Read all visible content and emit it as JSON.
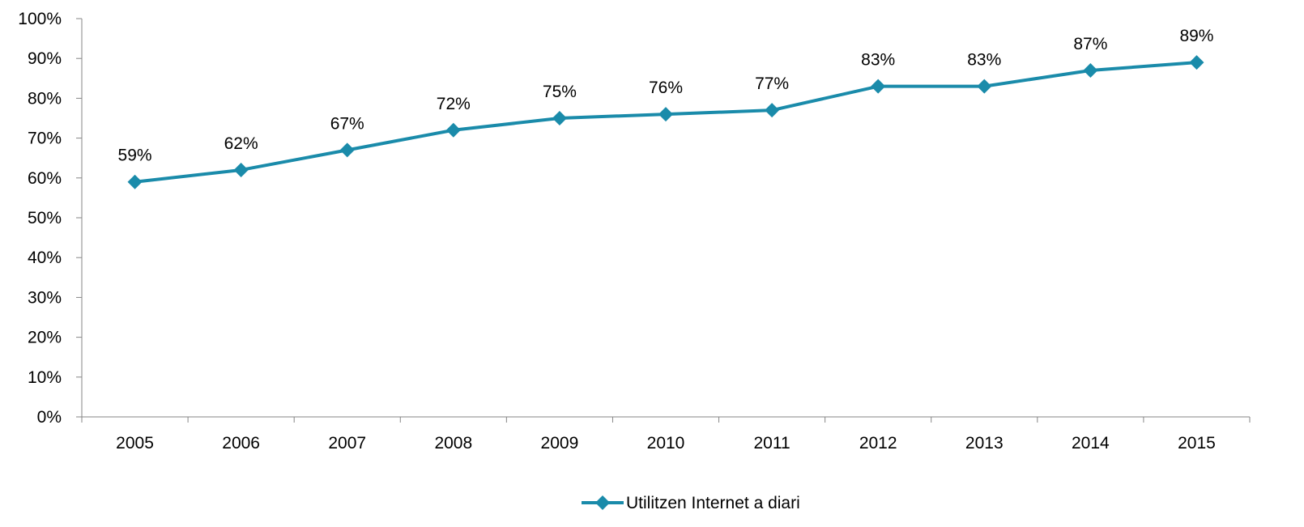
{
  "chart_data": {
    "type": "line",
    "title": "",
    "xlabel": "",
    "ylabel": "",
    "categories": [
      "2005",
      "2006",
      "2007",
      "2008",
      "2009",
      "2010",
      "2011",
      "2012",
      "2013",
      "2014",
      "2015"
    ],
    "series": [
      {
        "name": "Utilitzen Internet a diari",
        "values": [
          59,
          62,
          67,
          72,
          75,
          76,
          77,
          83,
          83,
          87,
          89
        ],
        "labels": [
          "59%",
          "62%",
          "67%",
          "72%",
          "75%",
          "76%",
          "77%",
          "83%",
          "83%",
          "87%",
          "89%"
        ],
        "color": "#1A8BAA",
        "marker": "diamond"
      }
    ],
    "ylim": [
      0,
      100
    ],
    "yticks": [
      "0%",
      "10%",
      "20%",
      "30%",
      "40%",
      "50%",
      "60%",
      "70%",
      "80%",
      "90%",
      "100%"
    ],
    "grid": false,
    "legend": "bottom-center"
  }
}
